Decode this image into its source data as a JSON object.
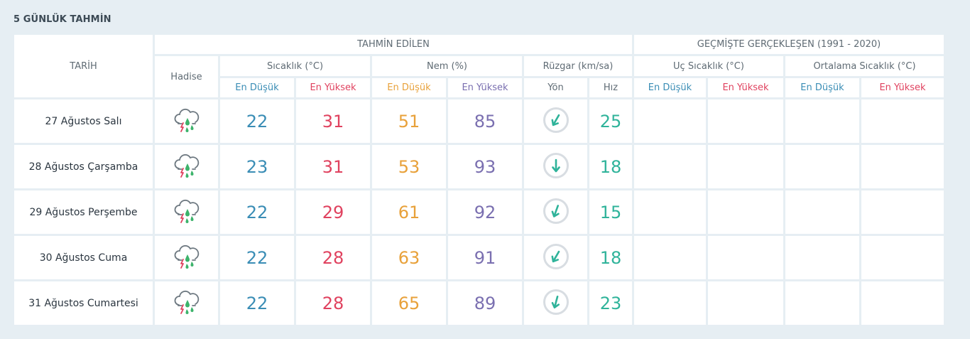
{
  "section_title": "5 GÜNLÜK TAHMİN",
  "headers": {
    "tarih": "TARİH",
    "tahmin_edilen": "TAHMİN EDİLEN",
    "gecmiste": "GEÇMİŞTE GERÇEKLEŞEN (1991 - 2020)",
    "hadise": "Hadise",
    "sicaklik": "Sıcaklık (°C)",
    "nem": "Nem (%)",
    "ruzgar": "Rüzgar (km/sa)",
    "uc_sicaklik": "Uç Sıcaklık (°C)",
    "ortalama_sicaklik": "Ortalama Sıcaklık (°C)",
    "en_dusuk": "En Düşük",
    "en_yuksek": "En Yüksek",
    "yon": "Yön",
    "hiz": "Hız"
  },
  "colors": {
    "low": "#3a8db5",
    "high": "#e0425f",
    "humidity_low": "#e8a13a",
    "humidity_high": "#7a6fb0",
    "wind": "#2fb39a"
  },
  "rows": [
    {
      "date": "27 Ağustos Salı",
      "icon": "thunderstorm-rain-icon",
      "temp_low": "22",
      "temp_high": "31",
      "hum_low": "51",
      "hum_high": "85",
      "wind_dir_deg": 210,
      "wind_speed": "25"
    },
    {
      "date": "28 Ağustos Çarşamba",
      "icon": "thunderstorm-rain-icon",
      "temp_low": "23",
      "temp_high": "31",
      "hum_low": "53",
      "hum_high": "93",
      "wind_dir_deg": 180,
      "wind_speed": "18"
    },
    {
      "date": "29 Ağustos Perşembe",
      "icon": "thunderstorm-rain-icon",
      "temp_low": "22",
      "temp_high": "29",
      "hum_low": "61",
      "hum_high": "92",
      "wind_dir_deg": 200,
      "wind_speed": "15"
    },
    {
      "date": "30 Ağustos Cuma",
      "icon": "thunderstorm-rain-icon",
      "temp_low": "22",
      "temp_high": "28",
      "hum_low": "63",
      "hum_high": "91",
      "wind_dir_deg": 210,
      "wind_speed": "18"
    },
    {
      "date": "31 Ağustos Cumartesi",
      "icon": "thunderstorm-rain-icon",
      "temp_low": "22",
      "temp_high": "28",
      "hum_low": "65",
      "hum_high": "89",
      "wind_dir_deg": 195,
      "wind_speed": "23"
    }
  ]
}
